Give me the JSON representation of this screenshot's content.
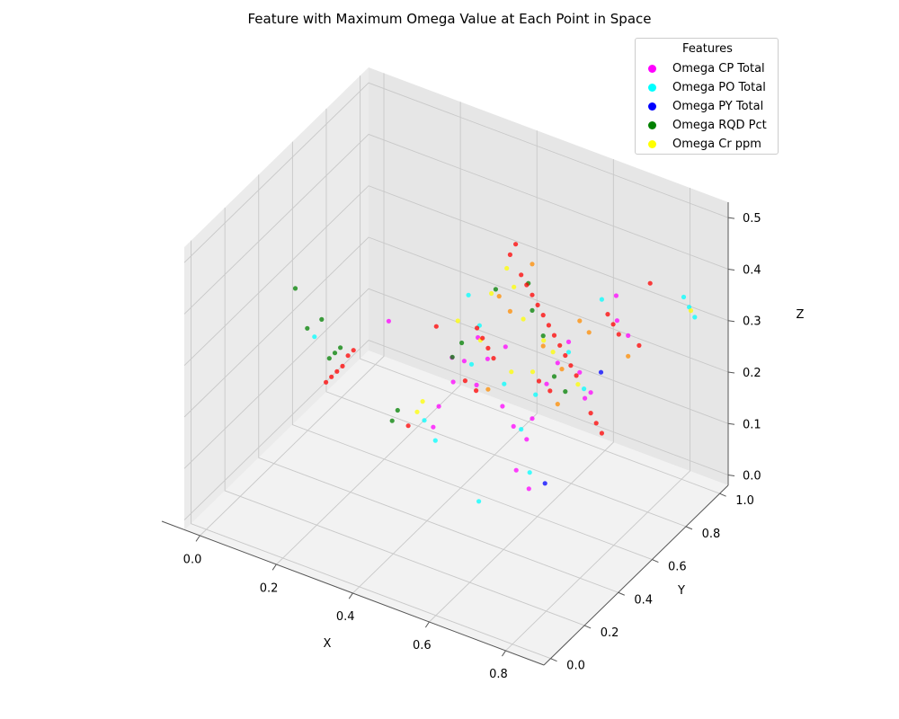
{
  "chart_data": {
    "type": "scatter",
    "projection": "3d",
    "title": "Feature with Maximum Omega Value at Each Point in Space",
    "xlabel": "X",
    "ylabel": "Y",
    "zlabel": "Z",
    "xlim": [
      -0.04,
      0.9
    ],
    "ylim": [
      -0.04,
      1.05
    ],
    "zlim": [
      -0.02,
      0.53
    ],
    "x_ticks": [
      "0.0",
      "0.2",
      "0.4",
      "0.6",
      "0.8"
    ],
    "y_ticks": [
      "0.0",
      "0.2",
      "0.4",
      "0.6",
      "0.8",
      "1.0"
    ],
    "z_ticks": [
      "0.0",
      "0.1",
      "0.2",
      "0.3",
      "0.4",
      "0.5"
    ],
    "grid": true,
    "legend": {
      "title": "Features",
      "placement": "top-right",
      "entries": [
        {
          "name": "Omega CP Total",
          "color": "#ff00ff"
        },
        {
          "name": "Omega PO Total",
          "color": "#00ffff"
        },
        {
          "name": "Omega PY Total",
          "color": "#0000ff"
        },
        {
          "name": "Omega RQD Pct",
          "color": "#008000"
        },
        {
          "name": "Omega Cr ppm",
          "color": "#ffff00"
        }
      ]
    },
    "series": [
      {
        "name": "Omega CP Total",
        "color": "#ff00ff",
        "points": [
          [
            0.35,
            0.55,
            0.1
          ],
          [
            0.36,
            0.56,
            0.14
          ],
          [
            0.38,
            0.6,
            0.18
          ],
          [
            0.4,
            0.62,
            0.22
          ],
          [
            0.45,
            0.58,
            0.2
          ],
          [
            0.47,
            0.6,
            0.25
          ],
          [
            0.5,
            0.62,
            0.16
          ],
          [
            0.52,
            0.64,
            0.12
          ],
          [
            0.55,
            0.65,
            0.1
          ],
          [
            0.56,
            0.66,
            0.14
          ],
          [
            0.58,
            0.7,
            0.2
          ],
          [
            0.6,
            0.72,
            0.24
          ],
          [
            0.62,
            0.74,
            0.28
          ],
          [
            0.64,
            0.76,
            0.22
          ],
          [
            0.66,
            0.78,
            0.18
          ],
          [
            0.6,
            0.55,
            0.05
          ],
          [
            0.58,
            0.52,
            0.09
          ],
          [
            0.7,
            0.84,
            0.36
          ],
          [
            0.72,
            0.8,
            0.33
          ],
          [
            0.43,
            0.48,
            0.28
          ],
          [
            0.48,
            0.52,
            0.32
          ],
          [
            0.53,
            0.57,
            0.3
          ],
          [
            0.3,
            0.4,
            0.34
          ],
          [
            0.68,
            0.7,
            0.2
          ],
          [
            0.74,
            0.82,
            0.3
          ]
        ]
      },
      {
        "name": "Omega PO Total",
        "color": "#00ffff",
        "points": [
          [
            0.34,
            0.52,
            0.12
          ],
          [
            0.36,
            0.54,
            0.08
          ],
          [
            0.42,
            0.6,
            0.36
          ],
          [
            0.44,
            0.62,
            0.3
          ],
          [
            0.5,
            0.63,
            0.2
          ],
          [
            0.54,
            0.64,
            0.12
          ],
          [
            0.56,
            0.68,
            0.18
          ],
          [
            0.62,
            0.74,
            0.26
          ],
          [
            0.68,
            0.8,
            0.36
          ],
          [
            0.85,
            0.9,
            0.38
          ],
          [
            0.86,
            0.91,
            0.36
          ],
          [
            0.87,
            0.92,
            0.34
          ],
          [
            0.5,
            0.48,
            0.02
          ],
          [
            0.58,
            0.6,
            0.06
          ],
          [
            0.15,
            0.3,
            0.3
          ],
          [
            0.45,
            0.55,
            0.25
          ],
          [
            0.66,
            0.74,
            0.2
          ]
        ]
      },
      {
        "name": "Omega PY Total",
        "color": "#0000ff",
        "points": [
          [
            0.62,
            0.6,
            0.05
          ],
          [
            0.7,
            0.75,
            0.24
          ]
        ]
      },
      {
        "name": "Omega RQD Pct",
        "color": "#008000",
        "points": [
          [
            0.3,
            0.42,
            0.14
          ],
          [
            0.31,
            0.43,
            0.16
          ],
          [
            0.4,
            0.55,
            0.25
          ],
          [
            0.42,
            0.56,
            0.28
          ],
          [
            0.55,
            0.66,
            0.4
          ],
          [
            0.56,
            0.66,
            0.35
          ],
          [
            0.58,
            0.68,
            0.3
          ],
          [
            0.6,
            0.7,
            0.22
          ],
          [
            0.62,
            0.72,
            0.19
          ],
          [
            0.18,
            0.32,
            0.26
          ],
          [
            0.19,
            0.33,
            0.27
          ],
          [
            0.2,
            0.34,
            0.28
          ],
          [
            0.14,
            0.28,
            0.32
          ],
          [
            0.16,
            0.32,
            0.33
          ],
          [
            0.1,
            0.3,
            0.38
          ],
          [
            0.5,
            0.58,
            0.4
          ]
        ]
      },
      {
        "name": "Omega Cr ppm",
        "color": "#ffff00",
        "points": [
          [
            0.33,
            0.5,
            0.14
          ],
          [
            0.34,
            0.51,
            0.16
          ],
          [
            0.41,
            0.56,
            0.32
          ],
          [
            0.46,
            0.58,
            0.29
          ],
          [
            0.52,
            0.6,
            0.44
          ],
          [
            0.53,
            0.62,
            0.4
          ],
          [
            0.55,
            0.63,
            0.34
          ],
          [
            0.57,
            0.64,
            0.24
          ],
          [
            0.59,
            0.66,
            0.3
          ],
          [
            0.61,
            0.67,
            0.28
          ],
          [
            0.64,
            0.75,
            0.2
          ],
          [
            0.86,
            0.92,
            0.35
          ],
          [
            0.48,
            0.6,
            0.38
          ],
          [
            0.51,
            0.65,
            0.22
          ]
        ]
      },
      {
        "name": "",
        "color": "#ff0000",
        "points": [
          [
            0.18,
            0.3,
            0.22
          ],
          [
            0.19,
            0.31,
            0.23
          ],
          [
            0.2,
            0.32,
            0.24
          ],
          [
            0.21,
            0.33,
            0.25
          ],
          [
            0.22,
            0.34,
            0.27
          ],
          [
            0.23,
            0.35,
            0.28
          ],
          [
            0.32,
            0.47,
            0.12
          ],
          [
            0.38,
            0.5,
            0.32
          ],
          [
            0.46,
            0.56,
            0.32
          ],
          [
            0.47,
            0.57,
            0.3
          ],
          [
            0.48,
            0.58,
            0.28
          ],
          [
            0.49,
            0.59,
            0.26
          ],
          [
            0.54,
            0.64,
            0.42
          ],
          [
            0.55,
            0.65,
            0.4
          ],
          [
            0.56,
            0.66,
            0.38
          ],
          [
            0.57,
            0.67,
            0.36
          ],
          [
            0.58,
            0.68,
            0.34
          ],
          [
            0.59,
            0.69,
            0.32
          ],
          [
            0.6,
            0.7,
            0.3
          ],
          [
            0.61,
            0.71,
            0.28
          ],
          [
            0.62,
            0.72,
            0.26
          ],
          [
            0.63,
            0.73,
            0.24
          ],
          [
            0.64,
            0.74,
            0.22
          ],
          [
            0.52,
            0.62,
            0.46
          ],
          [
            0.53,
            0.63,
            0.48
          ],
          [
            0.7,
            0.79,
            0.34
          ],
          [
            0.71,
            0.8,
            0.32
          ],
          [
            0.72,
            0.81,
            0.3
          ],
          [
            0.66,
            0.78,
            0.14
          ],
          [
            0.67,
            0.79,
            0.12
          ],
          [
            0.68,
            0.8,
            0.1
          ],
          [
            0.76,
            0.84,
            0.28
          ],
          [
            0.78,
            0.86,
            0.4
          ],
          [
            0.56,
            0.7,
            0.2
          ],
          [
            0.58,
            0.72,
            0.18
          ],
          [
            0.44,
            0.6,
            0.18
          ],
          [
            0.42,
            0.58,
            0.2
          ]
        ]
      },
      {
        "name": "",
        "color": "#ff8c00",
        "points": [
          [
            0.5,
            0.6,
            0.38
          ],
          [
            0.52,
            0.62,
            0.35
          ],
          [
            0.56,
            0.66,
            0.44
          ],
          [
            0.58,
            0.68,
            0.28
          ],
          [
            0.62,
            0.7,
            0.24
          ],
          [
            0.64,
            0.76,
            0.32
          ],
          [
            0.66,
            0.77,
            0.3
          ],
          [
            0.48,
            0.58,
            0.2
          ],
          [
            0.6,
            0.72,
            0.16
          ],
          [
            0.74,
            0.82,
            0.26
          ]
        ]
      }
    ]
  }
}
